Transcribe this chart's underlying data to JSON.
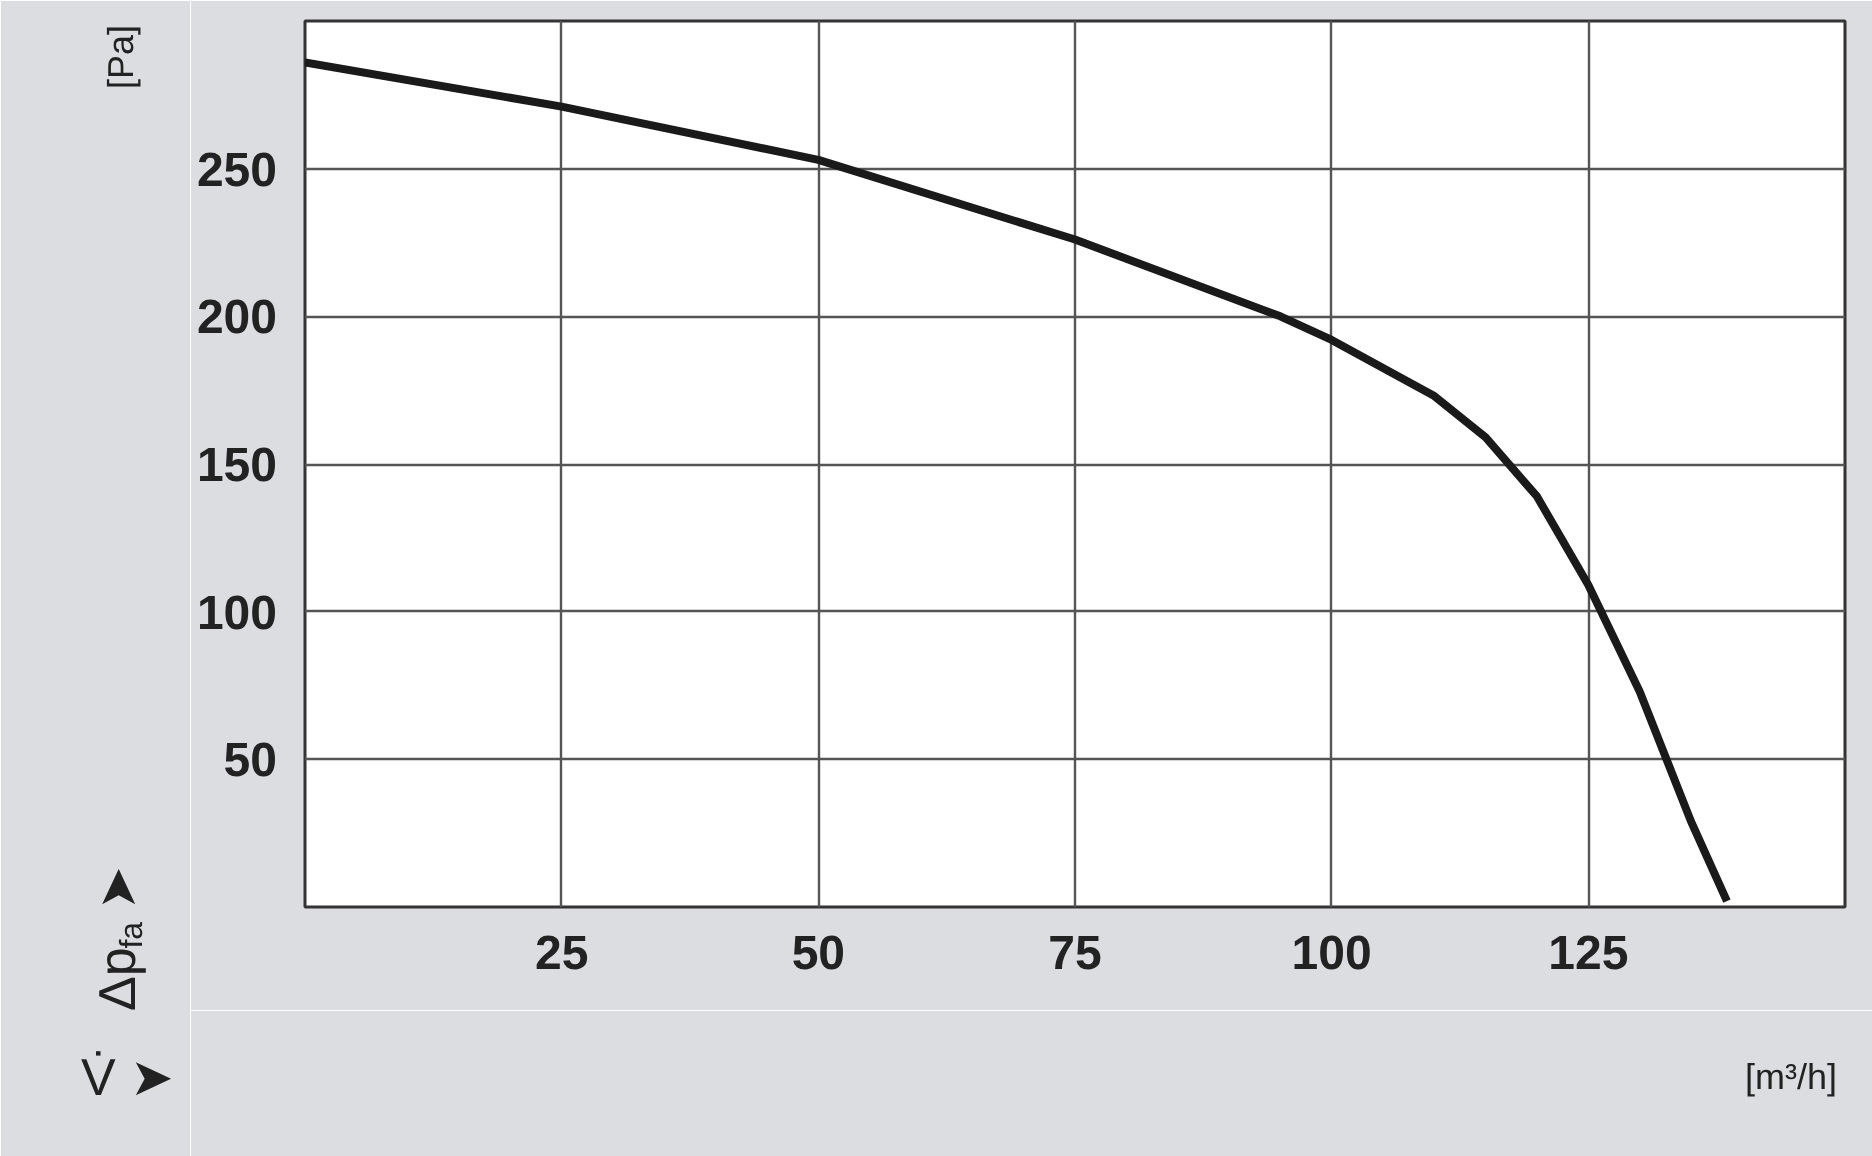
{
  "chart_data": {
    "type": "line",
    "xlabel": "V̇ ➤",
    "ylabel": "Δp$_{fa}$ ➤",
    "annotations": [
      "[Pa]",
      "[m³/h]"
    ],
    "x": [
      0,
      25,
      50,
      75,
      95,
      100,
      110,
      115,
      120,
      125,
      130,
      135,
      138.5
    ],
    "series": [
      {
        "color": "#1a1a1a",
        "values": [
          286,
          271,
          253,
          226,
          200,
          192,
          173,
          159,
          139,
          109,
          73,
          29,
          2
        ]
      }
    ],
    "xlim": [
      0,
      150
    ],
    "xticks": [
      {
        "value": 0,
        "label": null
      },
      25,
      50,
      75,
      100,
      125,
      {
        "value": 150,
        "label": null
      }
    ],
    "ylim": [
      0,
      300
    ],
    "yticks": [
      {
        "value": 0,
        "label": null
      },
      50,
      100,
      150,
      200,
      250,
      {
        "value": 300,
        "label": null
      }
    ],
    "grid": true,
    "marker": "none",
    "line_style": "solid"
  }
}
